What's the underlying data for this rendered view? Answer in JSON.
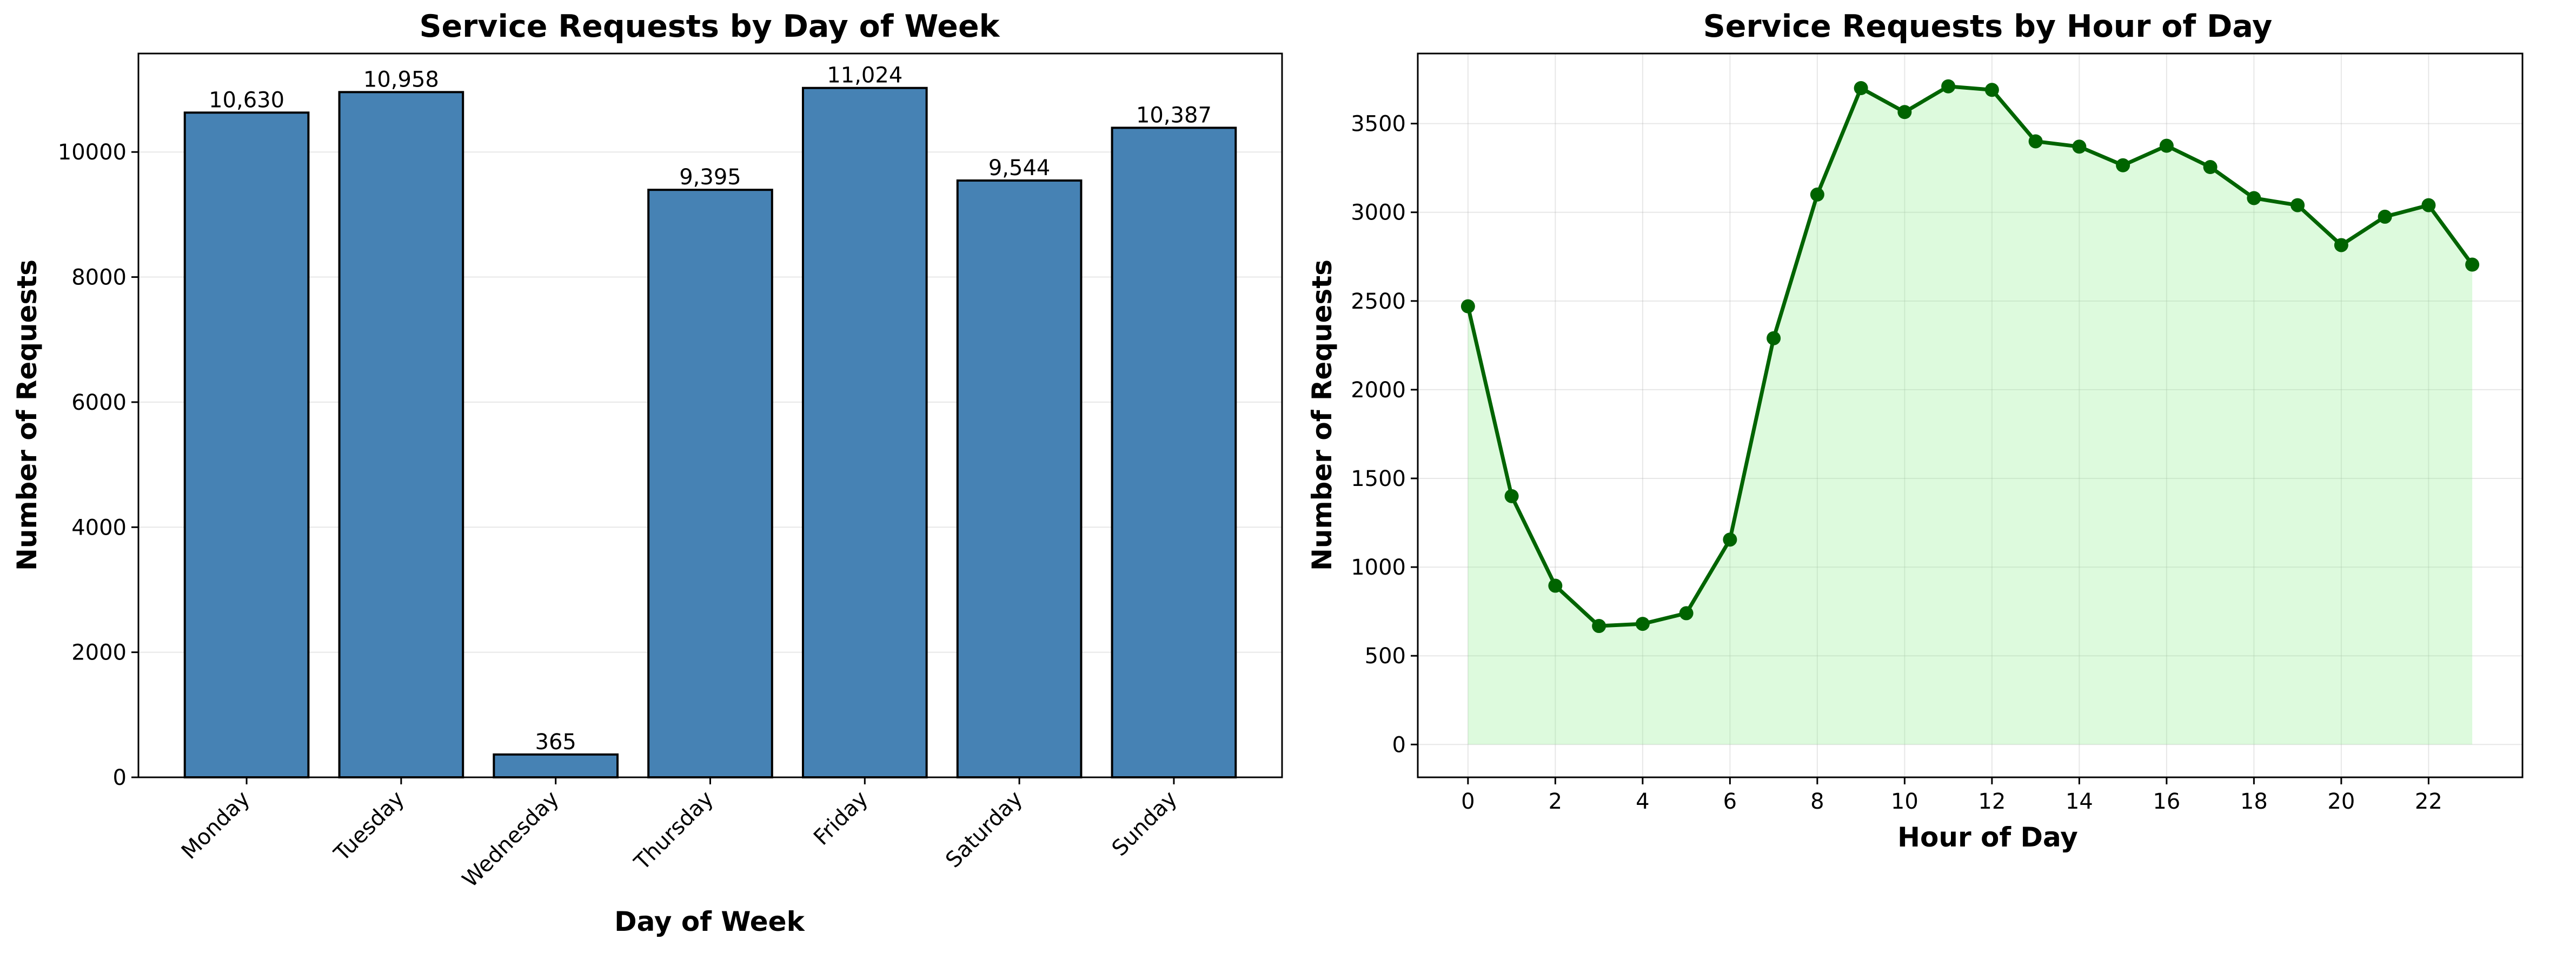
{
  "chart_data": [
    {
      "type": "bar",
      "title": "Service Requests by Day of Week",
      "xlabel": "Day of Week",
      "ylabel": "Number of Requests",
      "categories": [
        "Monday",
        "Tuesday",
        "Wednesday",
        "Thursday",
        "Friday",
        "Saturday",
        "Sunday"
      ],
      "values": [
        10630,
        10958,
        365,
        9395,
        11024,
        9544,
        10387
      ],
      "data_labels": [
        "10,630",
        "10,958",
        "365",
        "9,395",
        "11,024",
        "9,544",
        "10,387"
      ],
      "ylim": [
        0,
        11575
      ],
      "yticks": [
        0,
        2000,
        4000,
        6000,
        8000,
        10000
      ],
      "ytick_labels": [
        "0",
        "2000",
        "4000",
        "6000",
        "8000",
        "10000"
      ],
      "grid": "y",
      "colors": {
        "bar": "#4682b4",
        "edge": "#000000"
      }
    },
    {
      "type": "area",
      "title": "Service Requests by Hour of Day",
      "xlabel": "Hour of Day",
      "ylabel": "Number of Requests",
      "x": [
        0,
        1,
        2,
        3,
        4,
        5,
        6,
        7,
        8,
        9,
        10,
        11,
        12,
        13,
        14,
        15,
        16,
        17,
        18,
        19,
        20,
        21,
        22,
        23
      ],
      "values": [
        2470,
        1400,
        895,
        668,
        680,
        740,
        1155,
        2290,
        3100,
        3700,
        3565,
        3710,
        3690,
        3400,
        3370,
        3265,
        3375,
        3255,
        3080,
        3040,
        2815,
        2975,
        3040,
        2705
      ],
      "xlim": [
        -1.15,
        24.15
      ],
      "ylim": [
        -185,
        3895
      ],
      "xticks": [
        0,
        2,
        4,
        6,
        8,
        10,
        12,
        14,
        16,
        18,
        20,
        22
      ],
      "xtick_labels": [
        "0",
        "2",
        "4",
        "6",
        "8",
        "10",
        "12",
        "14",
        "16",
        "18",
        "20",
        "22"
      ],
      "yticks": [
        0,
        500,
        1000,
        1500,
        2000,
        2500,
        3000,
        3500
      ],
      "ytick_labels": [
        "0",
        "500",
        "1000",
        "1500",
        "2000",
        "2500",
        "3000",
        "3500"
      ],
      "grid": "both",
      "colors": {
        "line": "#006400",
        "fill": "#90ee90"
      }
    }
  ]
}
